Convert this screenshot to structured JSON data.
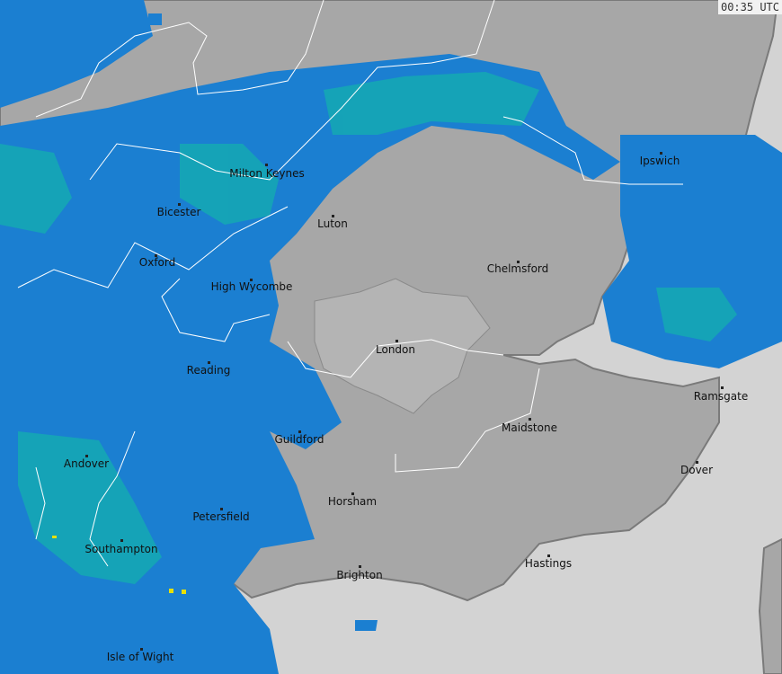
{
  "timestamp": "00:35 UTC",
  "colors": {
    "land": "#a7a7a7",
    "sea": "#d3d3d3",
    "radar_light": "#1b7fd1",
    "radar_moderate": "#14a9b3",
    "radar_heavy": "#e8e000",
    "border": "#ffffff",
    "coast": "#7a7a7a"
  },
  "towns": [
    {
      "name": "Ipswich"
    },
    {
      "name": "Milton Keynes"
    },
    {
      "name": "Bicester"
    },
    {
      "name": "Luton"
    },
    {
      "name": "Oxford"
    },
    {
      "name": "Chelmsford"
    },
    {
      "name": "High Wycombe"
    },
    {
      "name": "London"
    },
    {
      "name": "Reading"
    },
    {
      "name": "Ramsgate"
    },
    {
      "name": "Maidstone"
    },
    {
      "name": "Guildford"
    },
    {
      "name": "Andover"
    },
    {
      "name": "Dover"
    },
    {
      "name": "Horsham"
    },
    {
      "name": "Petersfield"
    },
    {
      "name": "Southampton"
    },
    {
      "name": "Hastings"
    },
    {
      "name": "Brighton"
    },
    {
      "name": "Isle of Wight"
    }
  ]
}
